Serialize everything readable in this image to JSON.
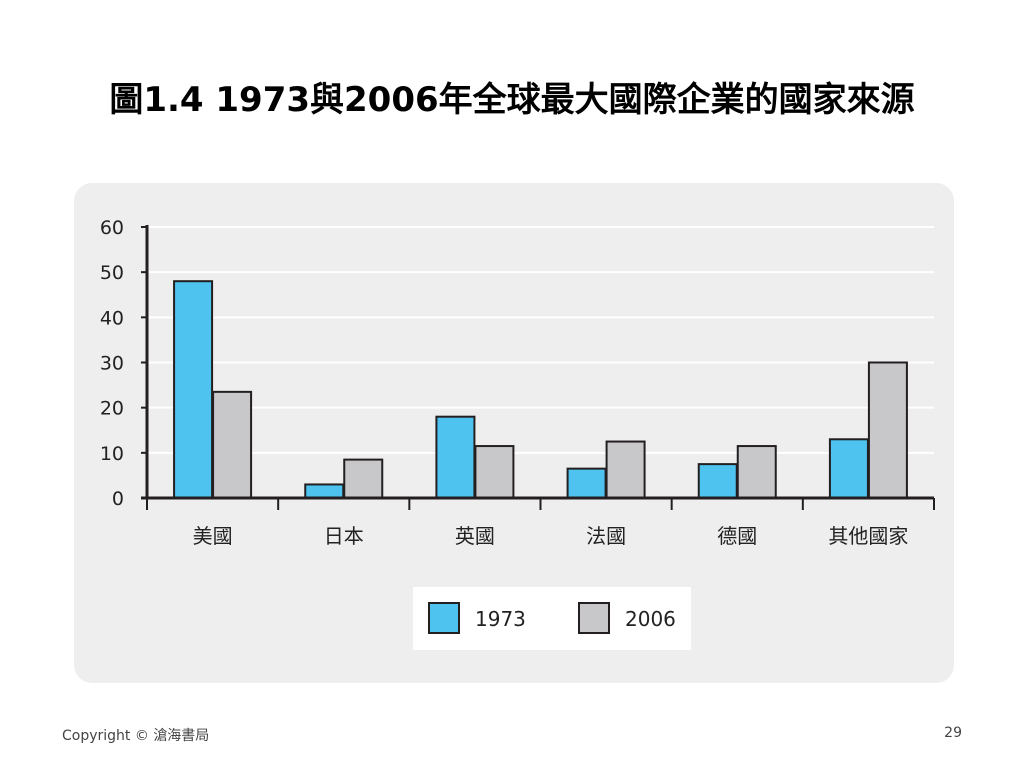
{
  "slide": {
    "title": "圖1.4 1973與2006年全球最大國際企業的國家來源",
    "copyright": "Copyright © 滄海書局",
    "page_number": "29"
  },
  "colors": {
    "series_1973": "#4fc3f0",
    "series_2006": "#c8c8ca",
    "panel_bg": "#eeeeee",
    "axis": "#231f20"
  },
  "chart_data": {
    "type": "bar",
    "categories": [
      "美國",
      "日本",
      "英國",
      "法國",
      "德國",
      "其他國家"
    ],
    "series": [
      {
        "name": "1973",
        "values": [
          48,
          3,
          18,
          6.5,
          7.5,
          13
        ]
      },
      {
        "name": "2006",
        "values": [
          23.5,
          8.5,
          11.5,
          12.5,
          11.5,
          30
        ]
      }
    ],
    "ylim": [
      0,
      60
    ],
    "yticks": [
      0,
      10,
      20,
      30,
      40,
      50,
      60
    ],
    "grid": true,
    "legend": "bottom-center"
  }
}
